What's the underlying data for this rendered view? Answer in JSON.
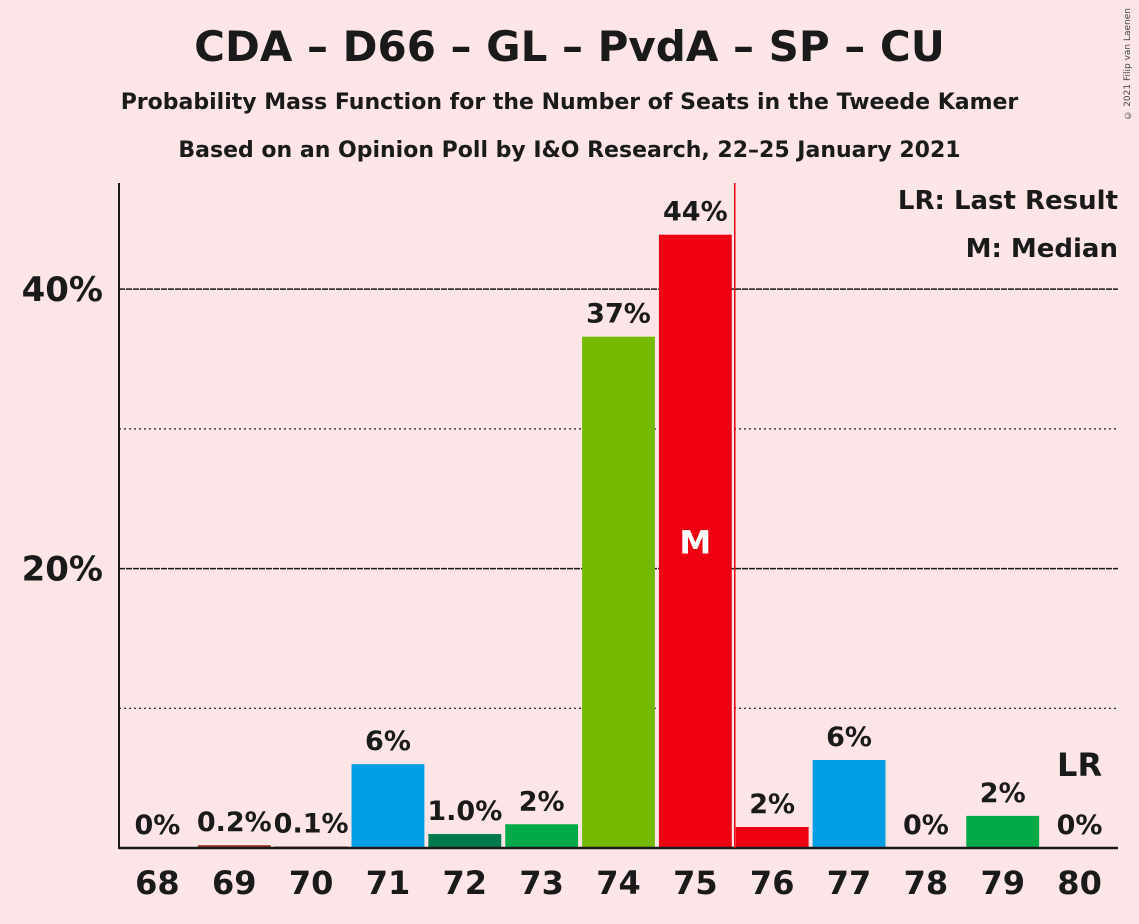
{
  "title": "CDA – D66 – GL – PvdA – SP – CU",
  "subtitle1": "Probability Mass Function for the Number of Seats in the Tweede Kamer",
  "subtitle2": "Based on an Opinion Poll by I&O Research, 22–25 January 2021",
  "copyright": "© 2021 Filip van Laenen",
  "legend": {
    "lr": "LR: Last Result",
    "m": "M: Median"
  },
  "markers": {
    "median_label": "M",
    "lr_label": "LR"
  },
  "colors": {
    "background": "#fbe5e6",
    "blue": "#009fe3",
    "darkgreen": "#007a4d",
    "green": "#00aa47",
    "lime": "#74bb00",
    "red": "#ee0010",
    "brown": "#9b2d1e"
  },
  "chart_data": {
    "type": "bar",
    "categories": [
      "68",
      "69",
      "70",
      "71",
      "72",
      "73",
      "74",
      "75",
      "76",
      "77",
      "78",
      "79",
      "80"
    ],
    "values": [
      0,
      0.2,
      0.1,
      6,
      1.0,
      1.7,
      36.6,
      43.9,
      1.5,
      6.3,
      0,
      2.3,
      0
    ],
    "data_labels": [
      "0%",
      "0.2%",
      "0.1%",
      "6%",
      "1.0%",
      "2%",
      "37%",
      "44%",
      "2%",
      "6%",
      "0%",
      "2%",
      "0%"
    ],
    "bar_colors": [
      "#9b2d1e",
      "#9b2d1e",
      "#9b2d1e",
      "#009fe3",
      "#007a4d",
      "#00aa47",
      "#74bb00",
      "#ee0010",
      "#ee0010",
      "#009fe3",
      "#009fe3",
      "#00aa47",
      "#00aa47"
    ],
    "y_ticks": [
      {
        "value": 20,
        "label": "20%"
      },
      {
        "value": 40,
        "label": "40%"
      }
    ],
    "minor_gridlines": [
      10,
      30
    ],
    "ylim": [
      0,
      47.6
    ],
    "median_seat": "75",
    "last_result_seat": "80"
  }
}
